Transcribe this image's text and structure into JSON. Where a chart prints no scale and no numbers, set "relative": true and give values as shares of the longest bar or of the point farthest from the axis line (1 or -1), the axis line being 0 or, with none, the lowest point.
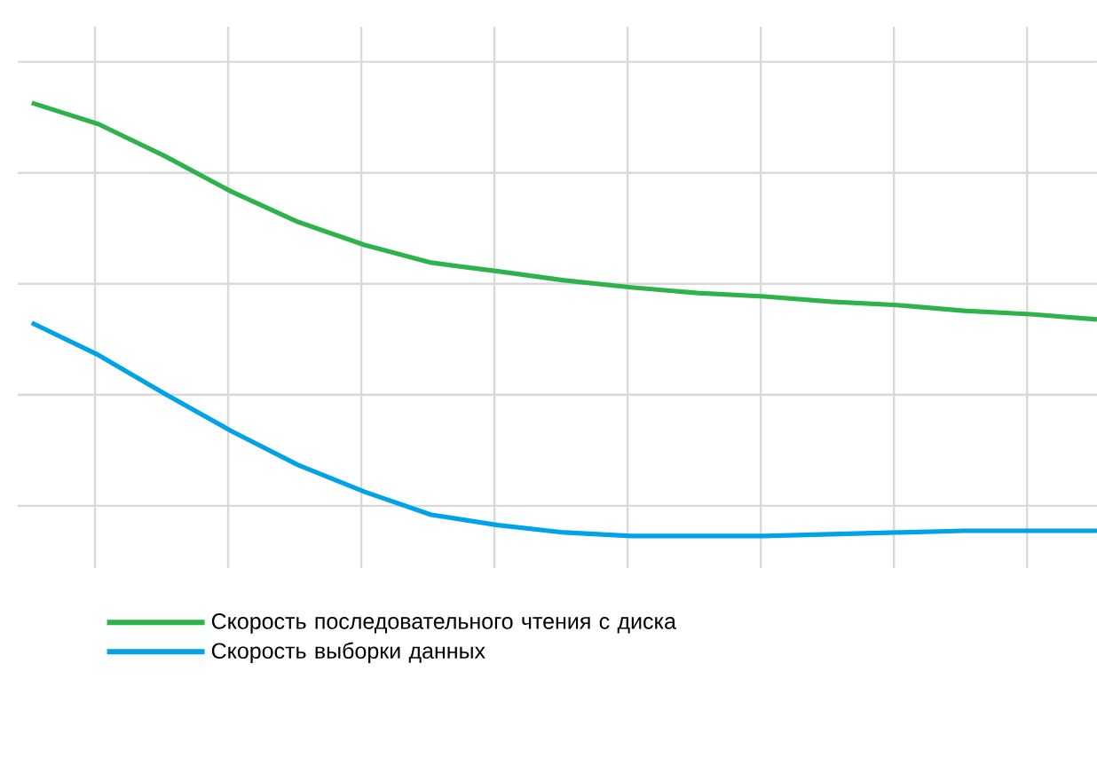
{
  "chart_data": {
    "type": "line",
    "relative": true,
    "grid": true,
    "legend": "bottom",
    "marker": "none",
    "line_style": "solid",
    "categories": [
      null,
      null,
      null,
      null,
      null,
      null,
      null,
      null,
      null,
      null,
      null,
      null,
      null,
      null,
      null,
      null,
      null
    ],
    "series": [
      {
        "name": "Скорость последовательного чтения с диска",
        "color": "#2db34a",
        "values": [
          1,
          0.951,
          0.877,
          0.795,
          0.725,
          0.672,
          0.631,
          0.611,
          0.59,
          0.574,
          0.561,
          0.553,
          0.541,
          0.533,
          0.52,
          0.512,
          0.5
        ]
      },
      {
        "name": "Скорость выборки данных",
        "color": "#00a3e8",
        "values": [
          0.492,
          0.418,
          0.328,
          0.242,
          0.164,
          0.102,
          0.049,
          0.025,
          0.008,
          0,
          0,
          0,
          0.004,
          0.008,
          0.012,
          0.012,
          0.012
        ]
      }
    ]
  }
}
